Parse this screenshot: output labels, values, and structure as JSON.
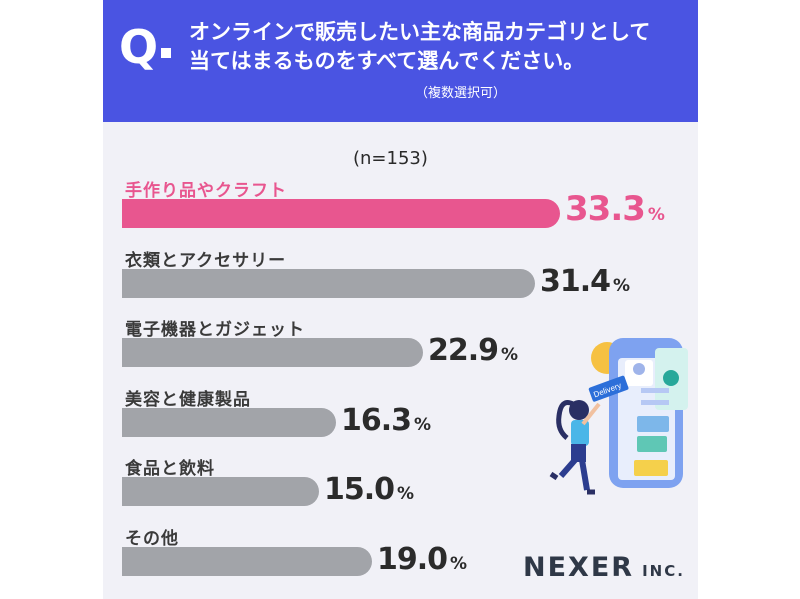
{
  "question": {
    "mark": "Q",
    "line1": "オンラインで販売したい主な商品カテゴリとして",
    "line2": "当てはまるものをすべて選んでください。",
    "note": "（複数選択可）"
  },
  "sample": "(n=153)",
  "colors": {
    "header": "#4a54e2",
    "highlight": "#e8568f",
    "bar": "#a2a4a9",
    "background": "#f1f1f7"
  },
  "logo": {
    "name": "NEXER",
    "suffix": "INC."
  },
  "illustration": {
    "icon": "online-shopping-illustration",
    "tag_text": "Delivery"
  },
  "chart_data": {
    "type": "bar",
    "orientation": "horizontal",
    "categories": [
      "手作り品やクラフト",
      "衣類とアクセサリー",
      "電子機器とガジェット",
      "美容と健康製品",
      "食品と飲料",
      "その他"
    ],
    "values": [
      33.3,
      31.4,
      22.9,
      16.3,
      15.0,
      19.0
    ],
    "value_labels": [
      "33.3",
      "31.4",
      "22.9",
      "16.3",
      "15.0",
      "19.0"
    ],
    "unit": "%",
    "highlight_index": 0,
    "xlim": [
      0,
      33.3
    ]
  }
}
